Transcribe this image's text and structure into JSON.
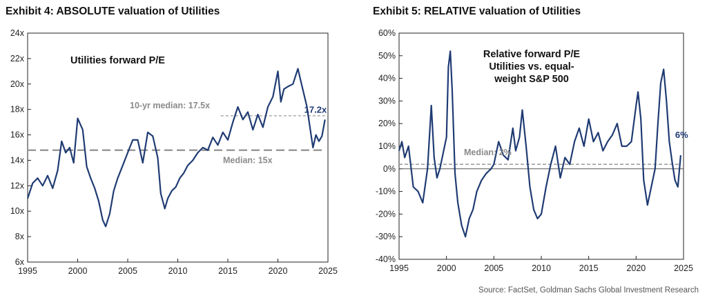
{
  "chart_data": [
    {
      "type": "line",
      "exhibit_title": "Exhibit 4: ABSOLUTE valuation of Utilities",
      "title": "Utilities forward P/E",
      "x_ticks": [
        "1995",
        "2000",
        "2005",
        "2010",
        "2015",
        "2020",
        "2025"
      ],
      "y_ticks": [
        "6x",
        "8x",
        "10x",
        "12x",
        "14x",
        "16x",
        "18x",
        "20x",
        "22x",
        "24x"
      ],
      "xlim": [
        1995,
        2025
      ],
      "ylim": [
        6,
        24
      ],
      "series_color": "#1f3b73",
      "annotations": {
        "median_label": "Median: 15x",
        "median_value": 14.8,
        "ten_yr_label": "10-yr median: 17.5x",
        "ten_yr_value": 17.5,
        "ten_yr_start": 2014.3,
        "last_label": "17.2x"
      },
      "series": [
        {
          "x": [
            1995,
            1995.5,
            1996,
            1996.5,
            1997,
            1997.5,
            1998,
            1998.4,
            1998.8,
            1999.2,
            1999.6,
            2000,
            2000.5,
            2000.9,
            2001.3,
            2001.7,
            2002.1,
            2002.5,
            2002.8,
            2003.2,
            2003.6,
            2004,
            2004.5,
            2005,
            2005.5,
            2006,
            2006.5,
            2007,
            2007.5,
            2008,
            2008.3,
            2008.7,
            2009,
            2009.4,
            2009.8,
            2010.2,
            2010.6,
            2011,
            2011.5,
            2012,
            2012.5,
            2013,
            2013.5,
            2014,
            2014.5,
            2015,
            2015.5,
            2016,
            2016.5,
            2017,
            2017.5,
            2018,
            2018.5,
            2019,
            2019.5,
            2020,
            2020.3,
            2020.6,
            2021,
            2021.5,
            2022,
            2022.3,
            2022.6,
            2022.9,
            2023.2,
            2023.5,
            2023.8,
            2024.1,
            2024.4,
            2024.7
          ],
          "values": [
            11.0,
            12.2,
            12.6,
            12.0,
            12.8,
            11.8,
            13.2,
            15.5,
            14.6,
            15.0,
            13.8,
            17.3,
            16.4,
            13.5,
            12.6,
            11.8,
            10.8,
            9.3,
            8.8,
            9.8,
            11.6,
            12.6,
            13.6,
            14.6,
            15.6,
            15.6,
            13.8,
            16.2,
            15.9,
            14.2,
            11.4,
            10.2,
            11.0,
            11.6,
            11.9,
            12.6,
            13.0,
            13.6,
            14.0,
            14.6,
            15.0,
            14.8,
            15.8,
            15.2,
            16.2,
            15.6,
            17.0,
            18.2,
            17.2,
            17.8,
            16.4,
            17.6,
            16.6,
            18.2,
            19.0,
            21.0,
            18.6,
            19.6,
            19.8,
            20.0,
            21.2,
            20.2,
            19.2,
            18.2,
            16.6,
            15.0,
            16.0,
            15.5,
            15.9,
            17.2
          ]
        }
      ]
    },
    {
      "type": "line",
      "exhibit_title": "Exhibit 5: RELATIVE valuation of Utilities",
      "title_lines": [
        "Relative forward P/E",
        "Utilities vs. equal-",
        "weight S&P 500"
      ],
      "x_ticks": [
        "1995",
        "2000",
        "2005",
        "2010",
        "2015",
        "2020",
        "2025"
      ],
      "y_ticks": [
        "-40%",
        "-30%",
        "-20%",
        "-10%",
        "0%",
        "10%",
        "20%",
        "30%",
        "40%",
        "50%",
        "60%"
      ],
      "xlim": [
        1995,
        2025
      ],
      "ylim": [
        -40,
        60
      ],
      "series_color": "#1f3b73",
      "annotations": {
        "median_label": "Median: 2%",
        "median_value": 2,
        "last_label": "6%"
      },
      "series": [
        {
          "x": [
            1995,
            1995.3,
            1995.6,
            1996,
            1996.5,
            1997,
            1997.5,
            1998,
            1998.4,
            1998.7,
            1999,
            1999.3,
            1999.6,
            2000,
            2000.2,
            2000.4,
            2000.6,
            2000.9,
            2001.2,
            2001.6,
            2002,
            2002.4,
            2002.8,
            2003.2,
            2003.7,
            2004.2,
            2004.7,
            2005,
            2005.5,
            2006,
            2006.5,
            2007,
            2007.3,
            2007.7,
            2008,
            2008.4,
            2008.8,
            2009.2,
            2009.6,
            2010,
            2010.5,
            2011,
            2011.5,
            2012,
            2012.5,
            2013,
            2013.5,
            2014,
            2014.5,
            2015,
            2015.5,
            2016,
            2016.5,
            2017,
            2017.5,
            2018,
            2018.5,
            2019,
            2019.5,
            2020,
            2020.2,
            2020.5,
            2020.8,
            2021.2,
            2021.6,
            2022,
            2022.3,
            2022.6,
            2022.9,
            2023.2,
            2023.5,
            2023.8,
            2024.1,
            2024.4,
            2024.7
          ],
          "values": [
            8,
            12,
            5,
            10,
            -8,
            -10,
            -15,
            0,
            28,
            5,
            -4,
            0,
            6,
            14,
            45,
            52,
            35,
            -2,
            -15,
            -25,
            -30,
            -22,
            -18,
            -10,
            -5,
            -2,
            0,
            2,
            12,
            6,
            4,
            18,
            8,
            14,
            26,
            10,
            -8,
            -18,
            -22,
            -20,
            -8,
            2,
            10,
            -4,
            5,
            2,
            12,
            18,
            10,
            22,
            12,
            16,
            8,
            12,
            15,
            20,
            10,
            10,
            12,
            28,
            34,
            22,
            -5,
            -16,
            -8,
            0,
            20,
            38,
            44,
            30,
            12,
            3,
            -5,
            -8,
            6
          ]
        }
      ]
    }
  ],
  "source": "Source: FactSet, Goldman Sachs Global Investment Research"
}
